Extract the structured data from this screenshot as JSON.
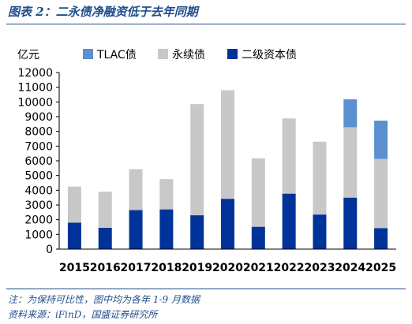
{
  "title": "图表 2：二永债净融资低于去年同期",
  "footnotes": {
    "note": "注：为保持可比性，图中均为各年 1-9 月数据",
    "source": "资料来源：iFinD，国盛证券研究所"
  },
  "chart_data": {
    "type": "bar",
    "stacked": true,
    "ylabel": "亿元",
    "ylim": [
      0,
      12000
    ],
    "yticks": [
      0,
      1000,
      2000,
      3000,
      4000,
      5000,
      6000,
      7000,
      8000,
      9000,
      10000,
      11000,
      12000
    ],
    "categories": [
      "2015",
      "2016",
      "2017",
      "2018",
      "2019",
      "2020",
      "2021",
      "2022",
      "2023",
      "2024",
      "2025"
    ],
    "legend_position": "top",
    "grid": false,
    "series": [
      {
        "name": "二级资本债",
        "color": "#003399",
        "values": [
          1800,
          1450,
          2650,
          2700,
          2300,
          3420,
          1520,
          3770,
          2350,
          3500,
          1430
        ]
      },
      {
        "name": "永续债",
        "color": "#c8c8c8",
        "values": [
          2450,
          2450,
          2780,
          2060,
          7550,
          7380,
          4650,
          5110,
          4950,
          4780,
          4700
        ]
      },
      {
        "name": "TLAC债",
        "color": "#5b8fcf",
        "values": [
          0,
          0,
          0,
          0,
          0,
          0,
          0,
          0,
          0,
          1900,
          2600
        ]
      }
    ],
    "legend_order": [
      "TLAC债",
      "永续债",
      "二级资本债"
    ]
  }
}
